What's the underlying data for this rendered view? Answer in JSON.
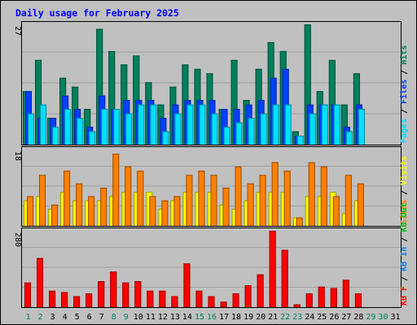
{
  "title": "Daily usage for February 2025",
  "colors": {
    "background": "#c0c0c0",
    "title": "#0000ff",
    "hits": "#00805c",
    "files": "#0040ff",
    "pages": "#00e0ff",
    "visits": "#ffff00",
    "sites": "#ff8000",
    "kb_in": "#0080ff",
    "kb_out": "#00c000",
    "kb_f": "#ff0000",
    "day_weekday": "#000000",
    "day_weekend": "#00805c"
  },
  "chart_data": [
    {
      "type": "bar",
      "panel": "hits-files-pages",
      "ymax_label": "27",
      "ylim": [
        0,
        27
      ],
      "legend": [
        {
          "label": "Pages",
          "color_key": "pages"
        },
        {
          "label": "Files",
          "color_key": "files"
        },
        {
          "label": "Hits",
          "color_key": "hits"
        }
      ],
      "x": [
        1,
        2,
        3,
        4,
        5,
        6,
        7,
        8,
        9,
        10,
        11,
        12,
        13,
        14,
        15,
        16,
        17,
        18,
        19,
        20,
        21,
        22,
        23,
        24,
        25,
        26,
        27,
        28
      ],
      "series": [
        {
          "name": "Hits",
          "color_key": "hits",
          "values": [
            12,
            19,
            6,
            15,
            13,
            8,
            26,
            21,
            18,
            20,
            14,
            9,
            13,
            18,
            17,
            16,
            8,
            19,
            10,
            17,
            23,
            21,
            3,
            27,
            12,
            19,
            9,
            16
          ]
        },
        {
          "name": "Files",
          "color_key": "files",
          "values": [
            12,
            6,
            6,
            11,
            8,
            4,
            11,
            8,
            10,
            10,
            10,
            6,
            9,
            10,
            10,
            10,
            8,
            8,
            9,
            10,
            15,
            17,
            2,
            9,
            9,
            9,
            4,
            9
          ]
        },
        {
          "name": "Pages",
          "color_key": "pages",
          "values": [
            7,
            9,
            4,
            8,
            6,
            3,
            8,
            8,
            7,
            9,
            9,
            3,
            7,
            9,
            9,
            7,
            4,
            5,
            6,
            7,
            9,
            9,
            2,
            7,
            9,
            9,
            3,
            8
          ]
        }
      ]
    },
    {
      "type": "bar",
      "panel": "visits-sites",
      "ymax_label": "18",
      "ylim": [
        0,
        18
      ],
      "legend": [
        {
          "label": "Sites",
          "color_key": "sites"
        },
        {
          "label": "Visits",
          "color_key": "visits"
        }
      ],
      "x": [
        1,
        2,
        3,
        4,
        5,
        6,
        7,
        8,
        9,
        10,
        11,
        12,
        13,
        14,
        15,
        16,
        17,
        18,
        19,
        20,
        21,
        22,
        23,
        24,
        25,
        26,
        27,
        28
      ],
      "series": [
        {
          "name": "Visits",
          "color_key": "visits",
          "values": [
            6,
            7,
            4,
            8,
            6,
            6,
            6,
            7,
            8,
            8,
            8,
            4,
            6,
            8,
            8,
            8,
            5,
            4,
            6,
            8,
            8,
            8,
            2,
            7,
            7,
            8,
            3,
            6
          ]
        },
        {
          "name": "Sites",
          "color_key": "sites",
          "values": [
            7,
            12,
            5,
            13,
            10,
            7,
            9,
            17,
            14,
            13,
            7,
            6,
            7,
            12,
            13,
            12,
            9,
            14,
            10,
            12,
            15,
            13,
            2,
            15,
            14,
            7,
            12,
            10
          ]
        }
      ]
    },
    {
      "type": "bar",
      "panel": "kb-f",
      "ymax_label": "280",
      "ylim": [
        0,
        280
      ],
      "legend": [
        {
          "label": "KB F",
          "color_key": "kb_f"
        },
        {
          "label": "KB In",
          "color_key": "kb_in"
        },
        {
          "label": "KB Out",
          "color_key": "kb_out"
        }
      ],
      "x": [
        1,
        2,
        3,
        4,
        5,
        6,
        7,
        8,
        9,
        10,
        11,
        12,
        13,
        14,
        15,
        16,
        17,
        18,
        19,
        20,
        21,
        22,
        23,
        24,
        25,
        26,
        27,
        28
      ],
      "series": [
        {
          "name": "KB F",
          "color_key": "kb_f",
          "values": [
            90,
            180,
            60,
            55,
            40,
            50,
            95,
            130,
            90,
            95,
            60,
            60,
            40,
            160,
            60,
            40,
            20,
            50,
            80,
            120,
            280,
            210,
            10,
            50,
            75,
            70,
            100,
            50
          ]
        }
      ]
    }
  ],
  "day_labels": [
    "1",
    "2",
    "3",
    "4",
    "5",
    "6",
    "7",
    "8",
    "9",
    "10",
    "11",
    "12",
    "13",
    "14",
    "15",
    "16",
    "17",
    "18",
    "19",
    "20",
    "21",
    "22",
    "23",
    "24",
    "25",
    "26",
    "27",
    "28",
    "29",
    "30",
    "31"
  ],
  "weekend_days": [
    1,
    2,
    8,
    9,
    15,
    16,
    22,
    23,
    29,
    30
  ]
}
